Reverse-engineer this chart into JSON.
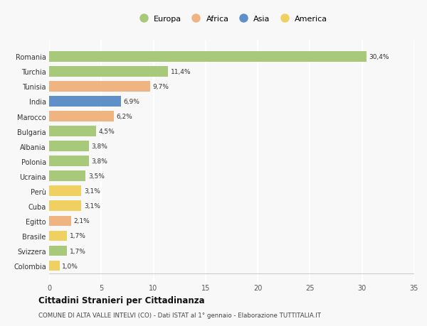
{
  "countries": [
    "Romania",
    "Turchia",
    "Tunisia",
    "India",
    "Marocco",
    "Bulgaria",
    "Albania",
    "Polonia",
    "Ucraina",
    "Perù",
    "Cuba",
    "Egitto",
    "Brasile",
    "Svizzera",
    "Colombia"
  ],
  "values": [
    30.4,
    11.4,
    9.7,
    6.9,
    6.2,
    4.5,
    3.8,
    3.8,
    3.5,
    3.1,
    3.1,
    2.1,
    1.7,
    1.7,
    1.0
  ],
  "labels": [
    "30,4%",
    "11,4%",
    "9,7%",
    "6,9%",
    "6,2%",
    "4,5%",
    "3,8%",
    "3,8%",
    "3,5%",
    "3,1%",
    "3,1%",
    "2,1%",
    "1,7%",
    "1,7%",
    "1,0%"
  ],
  "continents": [
    "Europa",
    "Europa",
    "Africa",
    "Asia",
    "Africa",
    "Europa",
    "Europa",
    "Europa",
    "Europa",
    "America",
    "America",
    "Africa",
    "America",
    "Europa",
    "America"
  ],
  "continent_colors": {
    "Europa": "#a8c87a",
    "Africa": "#f0b482",
    "Asia": "#6090c8",
    "America": "#f0d060"
  },
  "legend_order": [
    "Europa",
    "Africa",
    "Asia",
    "America"
  ],
  "title": "Cittadini Stranieri per Cittadinanza",
  "subtitle": "COMUNE DI ALTA VALLE INTELVI (CO) - Dati ISTAT al 1° gennaio - Elaborazione TUTTITALIA.IT",
  "xlim": [
    0,
    35
  ],
  "xticks": [
    0,
    5,
    10,
    15,
    20,
    25,
    30,
    35
  ],
  "background_color": "#f8f8f8",
  "grid_color": "#ffffff",
  "bar_height": 0.7
}
